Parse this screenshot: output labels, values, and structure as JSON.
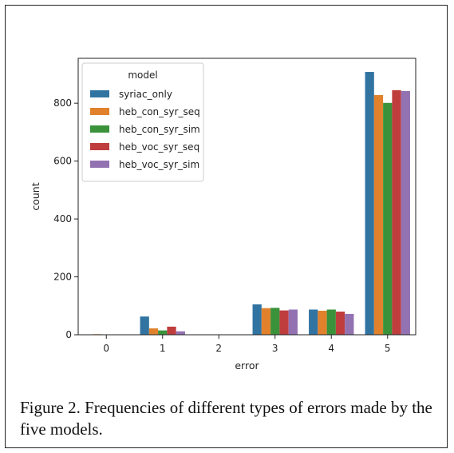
{
  "caption": "Figure 2. Frequencies of different types of errors made by the five models.",
  "chart_data": {
    "type": "bar",
    "xlabel": "error",
    "ylabel": "count",
    "categories": [
      "0",
      "1",
      "2",
      "3",
      "4",
      "5"
    ],
    "ylim": [
      0,
      955
    ],
    "yticks": [
      0,
      200,
      400,
      600,
      800
    ],
    "grid": false,
    "legend": {
      "title": "model",
      "placement": "upper-left"
    },
    "series": [
      {
        "name": "syriac_only",
        "color": "#3274a1",
        "values": [
          0,
          63,
          1,
          105,
          87,
          908
        ]
      },
      {
        "name": "heb_con_syr_seq",
        "color": "#e1812c",
        "values": [
          2,
          22,
          0,
          92,
          83,
          828
        ]
      },
      {
        "name": "heb_con_syr_sim",
        "color": "#3a923a",
        "values": [
          0,
          15,
          0,
          93,
          87,
          801
        ]
      },
      {
        "name": "heb_voc_syr_seq",
        "color": "#c03d3e",
        "values": [
          0,
          28,
          0,
          84,
          80,
          845
        ]
      },
      {
        "name": "heb_voc_syr_sim",
        "color": "#9372b2",
        "values": [
          0,
          12,
          0,
          87,
          72,
          842
        ]
      }
    ]
  }
}
